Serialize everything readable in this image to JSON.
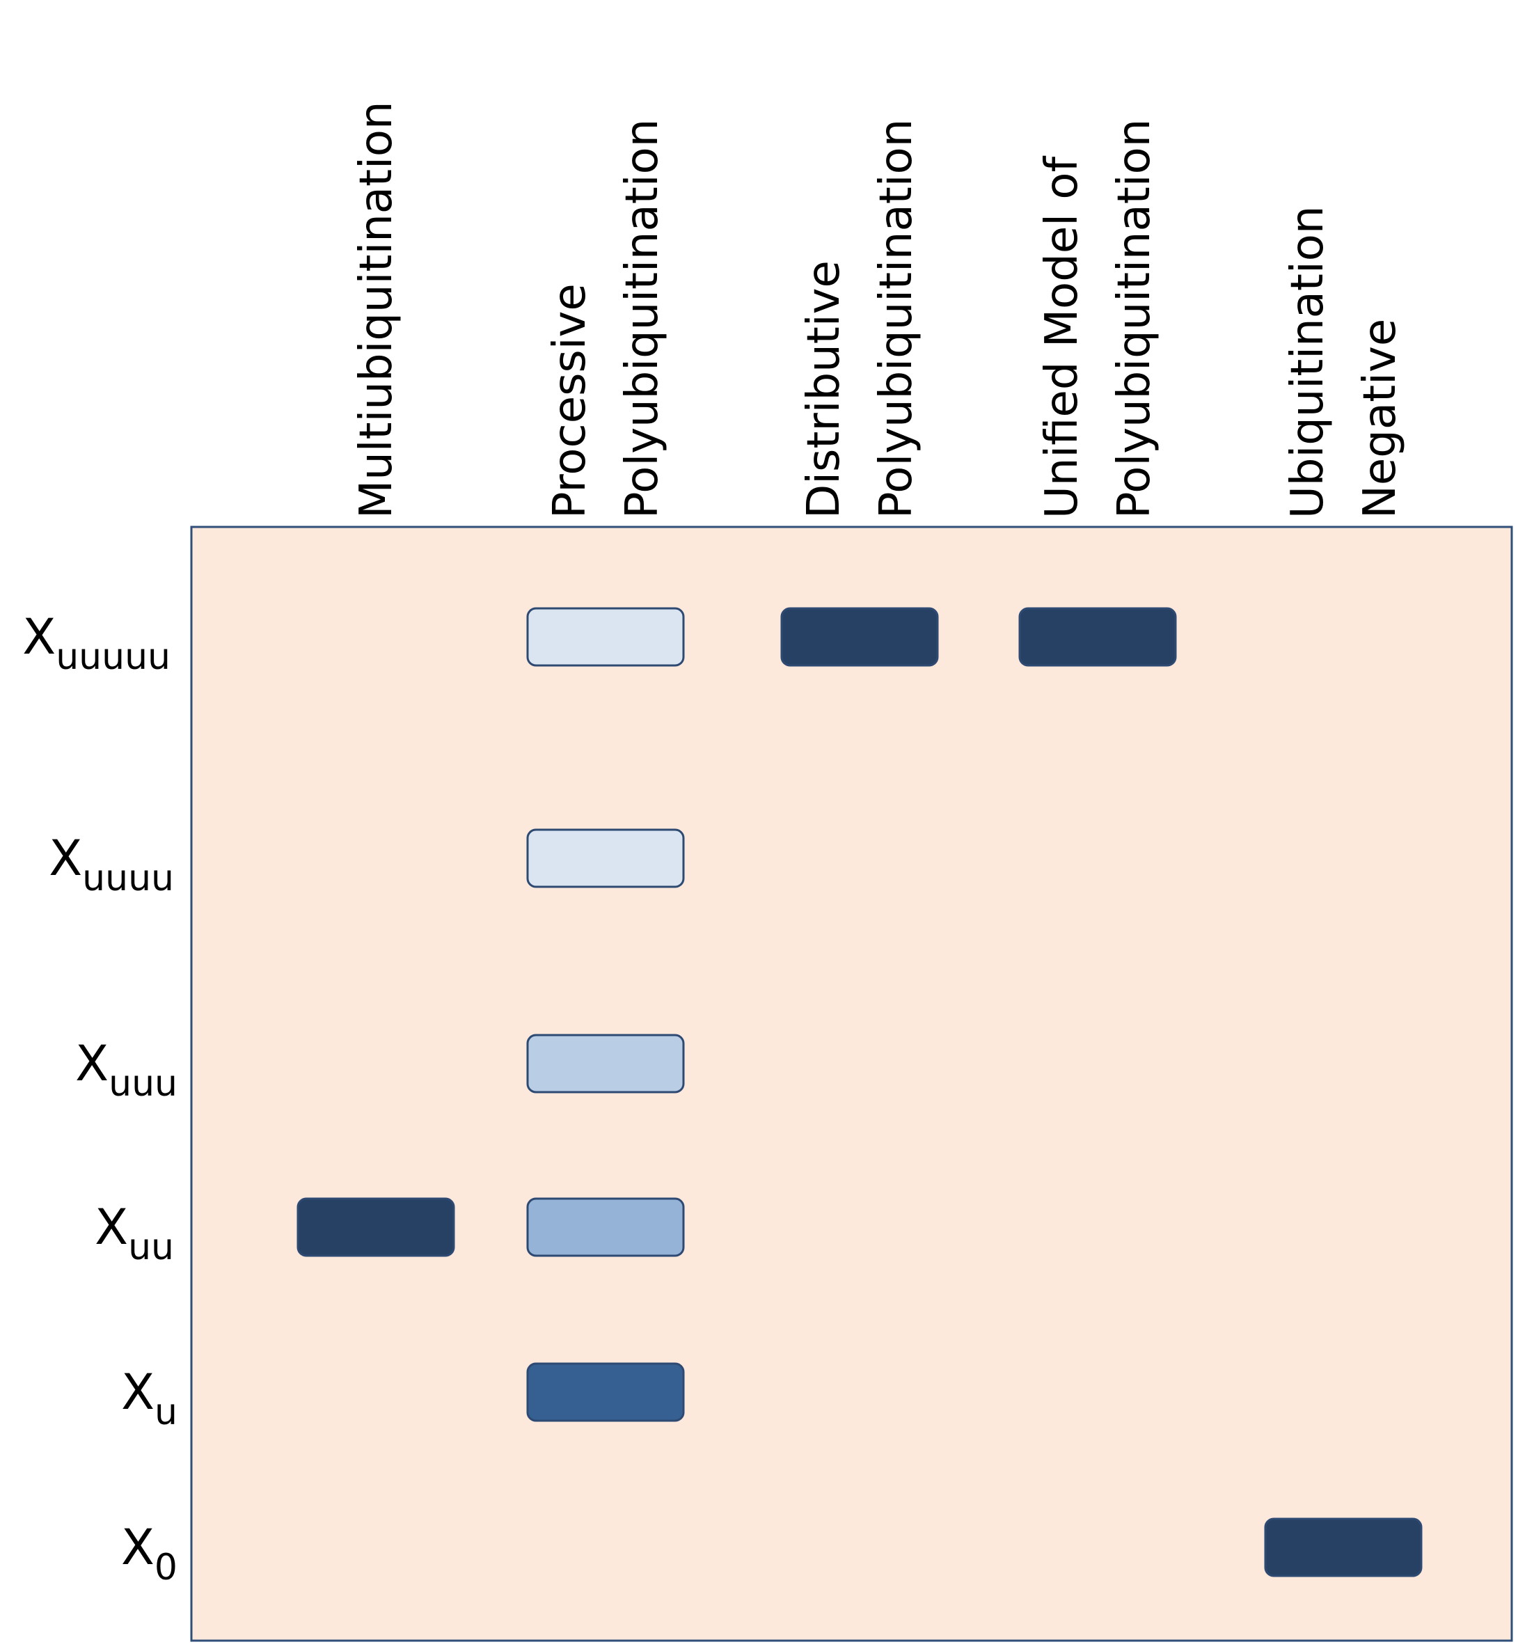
{
  "lanes": [
    {
      "label_lines": [
        "Multiubiquitination"
      ]
    },
    {
      "label_lines": [
        "Processive",
        "Polyubiquitination"
      ]
    },
    {
      "label_lines": [
        "Distributive",
        "Polyubiquitination"
      ]
    },
    {
      "label_lines": [
        "Unified Model of",
        "Polyubiquitination"
      ]
    },
    {
      "label_lines": [
        "Ubiquitination",
        "Negative"
      ]
    }
  ],
  "rows": [
    {
      "base": "X",
      "sub": "uuuuu"
    },
    {
      "base": "X",
      "sub": "uuuu"
    },
    {
      "base": "X",
      "sub": "uuu"
    },
    {
      "base": "X",
      "sub": "uu"
    },
    {
      "base": "X",
      "sub": "u"
    },
    {
      "base": "X",
      "sub": "0"
    }
  ],
  "bands": [
    {
      "lane": 1,
      "row": 0,
      "intensity": "very-light"
    },
    {
      "lane": 2,
      "row": 0,
      "intensity": "dark"
    },
    {
      "lane": 3,
      "row": 0,
      "intensity": "dark"
    },
    {
      "lane": 1,
      "row": 1,
      "intensity": "very-light"
    },
    {
      "lane": 1,
      "row": 2,
      "intensity": "light"
    },
    {
      "lane": 0,
      "row": 3,
      "intensity": "dark"
    },
    {
      "lane": 1,
      "row": 3,
      "intensity": "medium"
    },
    {
      "lane": 1,
      "row": 4,
      "intensity": "strong"
    },
    {
      "lane": 4,
      "row": 5,
      "intensity": "dark"
    }
  ],
  "colors": {
    "gel_fill": "#FCE9DC",
    "gel_border": "#2F4E78",
    "band_border": "#2E4A73",
    "intensity": {
      "very-light": "#DBE5F1",
      "light": "#B9CDE5",
      "medium": "#95B3D7",
      "strong": "#366092",
      "dark": "#264163"
    }
  }
}
